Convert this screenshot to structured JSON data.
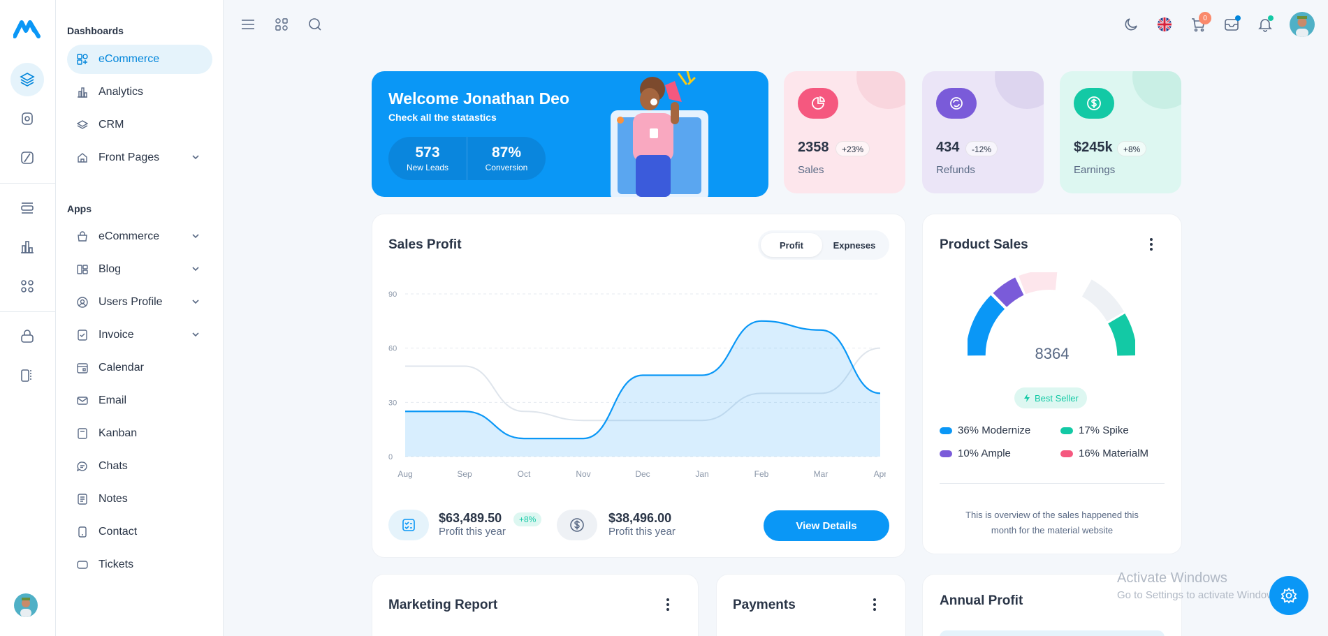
{
  "sidebar": {
    "section_dashboards": "Dashboards",
    "dashboards": [
      {
        "label": "eCommerce",
        "icon": "shopping-grid-icon",
        "active": true
      },
      {
        "label": "Analytics",
        "icon": "bar-chart-icon"
      },
      {
        "label": "CRM",
        "icon": "layers-icon"
      },
      {
        "label": "Front Pages",
        "icon": "home-icon",
        "expandable": true
      }
    ],
    "section_apps": "Apps",
    "apps": [
      {
        "label": "eCommerce",
        "icon": "basket-icon",
        "expandable": true
      },
      {
        "label": "Blog",
        "icon": "blog-icon",
        "expandable": true
      },
      {
        "label": "Users Profile",
        "icon": "user-circle-icon",
        "expandable": true
      },
      {
        "label": "Invoice",
        "icon": "invoice-icon",
        "expandable": true
      },
      {
        "label": "Calendar",
        "icon": "calendar-icon"
      },
      {
        "label": "Email",
        "icon": "mail-icon"
      },
      {
        "label": "Kanban",
        "icon": "kanban-icon"
      },
      {
        "label": "Chats",
        "icon": "chat-icon"
      },
      {
        "label": "Notes",
        "icon": "notes-icon"
      },
      {
        "label": "Contact",
        "icon": "phone-icon"
      },
      {
        "label": "Tickets",
        "icon": "ticket-icon"
      }
    ]
  },
  "topbar": {
    "cart_count": "0"
  },
  "welcome": {
    "title": "Welcome Jonathan Deo",
    "subtitle": "Check all the statastics",
    "leads_value": "573",
    "leads_label": "New Leads",
    "conversion_value": "87%",
    "conversion_label": "Conversion"
  },
  "stats": [
    {
      "value": "2358",
      "change": "+23%",
      "label": "Sales",
      "bg": "#fde6ec",
      "accent": "#f5587f",
      "icon": "pie-chart-icon"
    },
    {
      "value": "434",
      "change": "-12%",
      "label": "Refunds",
      "bg": "#ebe5f7",
      "accent": "#7a5bd9",
      "icon": "refresh-icon"
    },
    {
      "value": "$245k",
      "change": "+8%",
      "label": "Earnings",
      "bg": "#ddf7f1",
      "accent": "#13c9a5",
      "icon": "dollar-icon"
    }
  ],
  "sales_profit": {
    "title": "Sales Profit",
    "tab_profit": "Profit",
    "tab_expenses": "Expneses",
    "summary1_value": "$63,489.50",
    "summary1_change": "+8%",
    "summary1_label": "Profit this year",
    "summary2_value": "$38,496.00",
    "summary2_label": "Profit this year",
    "button": "View Details"
  },
  "chart_data": {
    "type": "area",
    "categories": [
      "Aug",
      "Sep",
      "Oct",
      "Nov",
      "Dec",
      "Jan",
      "Feb",
      "Mar",
      "Apr"
    ],
    "y_ticks": [
      "0",
      "30",
      "60",
      "90"
    ],
    "ylim": [
      0,
      90
    ],
    "series": [
      {
        "values": [
          25,
          25,
          10,
          10,
          45,
          45,
          75,
          70,
          35
        ],
        "color": "#0a97f6"
      },
      {
        "values": [
          50,
          50,
          25,
          20,
          20,
          20,
          35,
          35,
          60
        ],
        "color": "#dfe5ec"
      }
    ],
    "grid": true
  },
  "product_sales": {
    "title": "Product Sales",
    "total": "8364",
    "badge": "Best Seller",
    "legend": [
      {
        "label": "36% Modernize",
        "color": "#0a97f6"
      },
      {
        "label": "17% Spike",
        "color": "#13c9a5"
      },
      {
        "label": "10% Ample",
        "color": "#7a5bd9"
      },
      {
        "label": "16% MaterialM",
        "color": "#f5587f"
      }
    ],
    "note": "This is overview of the sales happened this month for the material website"
  },
  "bottom": {
    "marketing": "Marketing Report",
    "payments": "Payments",
    "annual": "Annual Profit"
  },
  "watermark": {
    "line1": "Activate Windows",
    "line2": "Go to Settings to activate Windows."
  }
}
